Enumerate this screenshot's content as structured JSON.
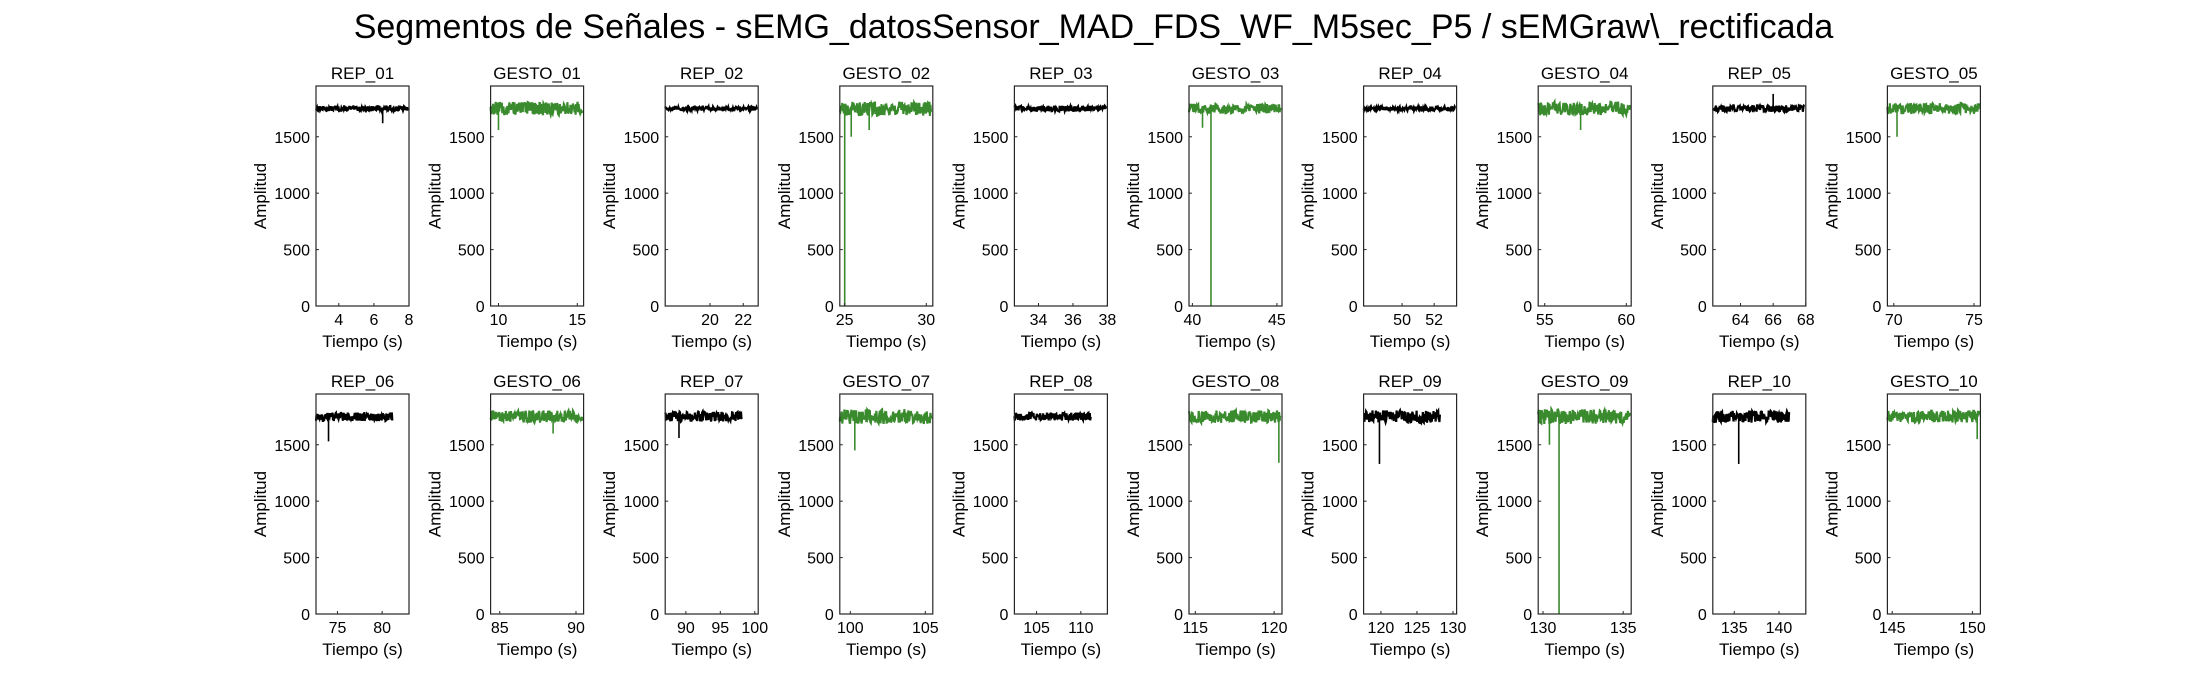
{
  "figure": {
    "title": "Segmentos de Señales - sEMG_datosSensor_MAD_FDS_WF_M5sec_P5 / sEMGraw\\_rectificada"
  },
  "colors": {
    "rep": "#000000",
    "gesto": "#3a8a2e",
    "axis": "#262626"
  },
  "chart_data": [
    {
      "type": "line",
      "title": "REP_01",
      "xlabel": "Tiempo (s)",
      "ylabel": "Amplitud",
      "xlim": [
        2.7,
        8.0
      ],
      "ylim": [
        0,
        1950
      ],
      "xticks": [
        4,
        6,
        8
      ],
      "yticks": [
        0,
        500,
        1000,
        1500
      ],
      "color_role": "rep",
      "baseline": 1750,
      "noise": 22,
      "spikes": [
        [
          6.5,
          1620
        ]
      ]
    },
    {
      "type": "line",
      "title": "GESTO_01",
      "xlabel": "Tiempo (s)",
      "ylabel": "Amplitud",
      "xlim": [
        9.5,
        15.4
      ],
      "ylim": [
        0,
        1950
      ],
      "xticks": [
        10,
        15
      ],
      "yticks": [
        0,
        500,
        1000,
        1500
      ],
      "color_role": "gesto",
      "baseline": 1750,
      "noise": 60,
      "spikes": [
        [
          10.0,
          1560
        ]
      ]
    },
    {
      "type": "line",
      "title": "REP_02",
      "xlabel": "Tiempo (s)",
      "ylabel": "Amplitud",
      "xlim": [
        17.3,
        22.9
      ],
      "ylim": [
        0,
        1950
      ],
      "xticks": [
        20,
        22
      ],
      "yticks": [
        0,
        500,
        1000,
        1500
      ],
      "color_role": "rep",
      "baseline": 1750,
      "noise": 18,
      "spikes": []
    },
    {
      "type": "line",
      "title": "GESTO_02",
      "xlabel": "Tiempo (s)",
      "ylabel": "Amplitud",
      "xlim": [
        24.7,
        30.4
      ],
      "ylim": [
        0,
        1950
      ],
      "xticks": [
        25,
        30
      ],
      "yticks": [
        0,
        500,
        1000,
        1500
      ],
      "color_role": "gesto",
      "baseline": 1750,
      "noise": 65,
      "spikes": [
        [
          25.0,
          0
        ],
        [
          25.4,
          1500
        ],
        [
          26.5,
          1560
        ]
      ]
    },
    {
      "type": "line",
      "title": "REP_03",
      "xlabel": "Tiempo (s)",
      "ylabel": "Amplitud",
      "xlim": [
        32.6,
        38.0
      ],
      "ylim": [
        0,
        1950
      ],
      "xticks": [
        34,
        36,
        38
      ],
      "yticks": [
        0,
        500,
        1000,
        1500
      ],
      "color_role": "rep",
      "baseline": 1750,
      "noise": 25,
      "spikes": []
    },
    {
      "type": "line",
      "title": "GESTO_03",
      "xlabel": "Tiempo (s)",
      "ylabel": "Amplitud",
      "xlim": [
        39.8,
        45.3
      ],
      "ylim": [
        0,
        1950
      ],
      "xticks": [
        40,
        45
      ],
      "yticks": [
        0,
        500,
        1000,
        1500
      ],
      "color_role": "gesto",
      "baseline": 1750,
      "noise": 45,
      "spikes": [
        [
          40.6,
          1580
        ],
        [
          41.1,
          0
        ]
      ]
    },
    {
      "type": "line",
      "title": "REP_04",
      "xlabel": "Tiempo (s)",
      "ylabel": "Amplitud",
      "xlim": [
        47.6,
        53.4
      ],
      "ylim": [
        0,
        1950
      ],
      "xticks": [
        50,
        52
      ],
      "yticks": [
        0,
        500,
        1000,
        1500
      ],
      "color_role": "rep",
      "baseline": 1750,
      "noise": 20,
      "spikes": []
    },
    {
      "type": "line",
      "title": "GESTO_04",
      "xlabel": "Tiempo (s)",
      "ylabel": "Amplitud",
      "xlim": [
        54.6,
        60.3
      ],
      "ylim": [
        0,
        1950
      ],
      "xticks": [
        55,
        60
      ],
      "yticks": [
        0,
        500,
        1000,
        1500
      ],
      "color_role": "gesto",
      "baseline": 1750,
      "noise": 60,
      "spikes": [
        [
          57.2,
          1560
        ]
      ]
    },
    {
      "type": "line",
      "title": "REP_05",
      "xlabel": "Tiempo (s)",
      "ylabel": "Amplitud",
      "xlim": [
        62.3,
        68.0
      ],
      "ylim": [
        0,
        1950
      ],
      "xticks": [
        64,
        66,
        68
      ],
      "yticks": [
        0,
        500,
        1000,
        1500
      ],
      "color_role": "rep",
      "baseline": 1750,
      "noise": 30,
      "spikes": [
        [
          66.0,
          1880
        ]
      ]
    },
    {
      "type": "line",
      "title": "GESTO_05",
      "xlabel": "Tiempo (s)",
      "ylabel": "Amplitud",
      "xlim": [
        69.6,
        75.4
      ],
      "ylim": [
        0,
        1950
      ],
      "xticks": [
        70,
        75
      ],
      "yticks": [
        0,
        500,
        1000,
        1500
      ],
      "color_role": "gesto",
      "baseline": 1750,
      "noise": 50,
      "spikes": [
        [
          70.2,
          1500
        ]
      ]
    },
    {
      "type": "line",
      "title": "REP_06",
      "xlabel": "Tiempo (s)",
      "ylabel": "Amplitud",
      "xlim": [
        72.6,
        83.0
      ],
      "ylim": [
        0,
        1950
      ],
      "xticks": [
        75,
        80
      ],
      "yticks": [
        0,
        500,
        1000,
        1500
      ],
      "color_role": "rep",
      "baseline": 1750,
      "noise": 40,
      "spikes": [
        [
          74.0,
          1530
        ]
      ]
    },
    {
      "type": "line",
      "title": "GESTO_06",
      "xlabel": "Tiempo (s)",
      "ylabel": "Amplitud",
      "xlim": [
        84.4,
        90.5
      ],
      "ylim": [
        0,
        1950
      ],
      "xticks": [
        85,
        90
      ],
      "yticks": [
        0,
        500,
        1000,
        1500
      ],
      "color_role": "gesto",
      "baseline": 1750,
      "noise": 55,
      "spikes": [
        [
          88.5,
          1600
        ]
      ]
    },
    {
      "type": "line",
      "title": "REP_07",
      "xlabel": "Tiempo (s)",
      "ylabel": "Amplitud",
      "xlim": [
        87.0,
        100.5
      ],
      "ylim": [
        0,
        1950
      ],
      "xticks": [
        90,
        95,
        100
      ],
      "yticks": [
        0,
        500,
        1000,
        1500
      ],
      "color_role": "rep",
      "baseline": 1750,
      "noise": 45,
      "spikes": [
        [
          89.0,
          1560
        ]
      ]
    },
    {
      "type": "line",
      "title": "GESTO_07",
      "xlabel": "Tiempo (s)",
      "ylabel": "Amplitud",
      "xlim": [
        99.3,
        105.5
      ],
      "ylim": [
        0,
        1950
      ],
      "xticks": [
        100,
        105
      ],
      "yticks": [
        0,
        500,
        1000,
        1500
      ],
      "color_role": "gesto",
      "baseline": 1750,
      "noise": 65,
      "spikes": [
        [
          100.3,
          1450
        ]
      ]
    },
    {
      "type": "line",
      "title": "REP_08",
      "xlabel": "Tiempo (s)",
      "ylabel": "Amplitud",
      "xlim": [
        102.5,
        113.0
      ],
      "ylim": [
        0,
        1950
      ],
      "xticks": [
        105,
        110
      ],
      "yticks": [
        0,
        500,
        1000,
        1500
      ],
      "color_role": "rep",
      "baseline": 1750,
      "noise": 35,
      "spikes": []
    },
    {
      "type": "line",
      "title": "GESTO_08",
      "xlabel": "Tiempo (s)",
      "ylabel": "Amplitud",
      "xlim": [
        114.6,
        120.5
      ],
      "ylim": [
        0,
        1950
      ],
      "xticks": [
        115,
        120
      ],
      "yticks": [
        0,
        500,
        1000,
        1500
      ],
      "color_role": "gesto",
      "baseline": 1750,
      "noise": 55,
      "spikes": [
        [
          120.3,
          1340
        ]
      ]
    },
    {
      "type": "line",
      "title": "REP_09",
      "xlabel": "Tiempo (s)",
      "ylabel": "Amplitud",
      "xlim": [
        117.6,
        130.5
      ],
      "ylim": [
        0,
        1950
      ],
      "xticks": [
        120,
        125,
        130
      ],
      "yticks": [
        0,
        500,
        1000,
        1500
      ],
      "color_role": "rep",
      "baseline": 1750,
      "noise": 55,
      "spikes": [
        [
          119.8,
          1330
        ]
      ]
    },
    {
      "type": "line",
      "title": "GESTO_09",
      "xlabel": "Tiempo (s)",
      "ylabel": "Amplitud",
      "xlim": [
        129.7,
        135.5
      ],
      "ylim": [
        0,
        1950
      ],
      "xticks": [
        130,
        135
      ],
      "yticks": [
        0,
        500,
        1000,
        1500
      ],
      "color_role": "gesto",
      "baseline": 1750,
      "noise": 65,
      "spikes": [
        [
          130.4,
          1500
        ],
        [
          131.0,
          0
        ]
      ]
    },
    {
      "type": "line",
      "title": "REP_10",
      "xlabel": "Tiempo (s)",
      "ylabel": "Amplitud",
      "xlim": [
        132.6,
        143.0
      ],
      "ylim": [
        0,
        1950
      ],
      "xticks": [
        135,
        140
      ],
      "yticks": [
        0,
        500,
        1000,
        1500
      ],
      "color_role": "rep",
      "baseline": 1750,
      "noise": 55,
      "spikes": [
        [
          135.5,
          1330
        ]
      ]
    },
    {
      "type": "line",
      "title": "GESTO_10",
      "xlabel": "Tiempo (s)",
      "ylabel": "Amplitud",
      "xlim": [
        144.7,
        150.5
      ],
      "ylim": [
        0,
        1950
      ],
      "xticks": [
        145,
        150
      ],
      "yticks": [
        0,
        500,
        1000,
        1500
      ],
      "color_role": "gesto",
      "baseline": 1750,
      "noise": 55,
      "spikes": [
        [
          150.3,
          1550
        ]
      ]
    }
  ]
}
